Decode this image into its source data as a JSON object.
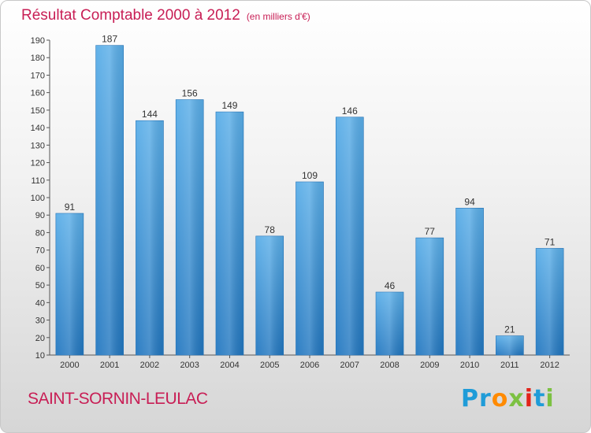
{
  "header": {
    "title": "Résultat Comptable 2000 à 2012",
    "subtitle": "(en milliers d'€)"
  },
  "footer": {
    "commune": "SAINT-SORNIN-LEULAC",
    "logo": "Proxiti"
  },
  "colors": {
    "accent": "#c81e55",
    "bar_light": "#5aaee8",
    "bar_dark": "#2277c0"
  },
  "chart_data": {
    "type": "bar",
    "title": "Résultat Comptable 2000 à 2012",
    "subtitle": "(en milliers d'€)",
    "xlabel": "",
    "ylabel": "",
    "categories": [
      "2000",
      "2001",
      "2002",
      "2003",
      "2004",
      "2005",
      "2006",
      "2007",
      "2008",
      "2009",
      "2010",
      "2011",
      "2012"
    ],
    "values": [
      91,
      187,
      144,
      156,
      149,
      78,
      109,
      146,
      46,
      77,
      94,
      21,
      71
    ],
    "ylim": [
      10,
      190
    ],
    "yticks": [
      10,
      20,
      30,
      40,
      50,
      60,
      70,
      80,
      90,
      100,
      110,
      120,
      130,
      140,
      150,
      160,
      170,
      180,
      190
    ],
    "grid": false,
    "legend": "none"
  }
}
